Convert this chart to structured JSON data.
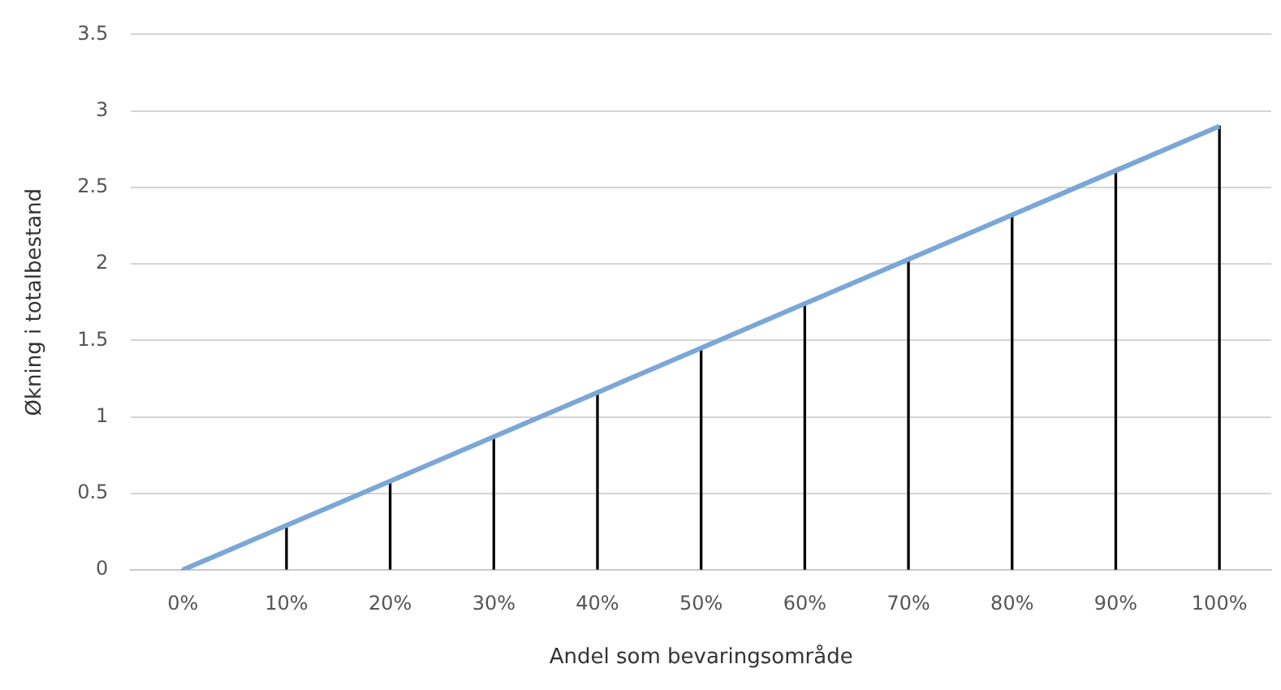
{
  "chart_data": {
    "type": "line",
    "xlabel": "Andel som bevaringsområde",
    "ylabel": "Økning i totalbestand",
    "categories": [
      "0%",
      "10%",
      "20%",
      "30%",
      "40%",
      "50%",
      "60%",
      "70%",
      "80%",
      "90%",
      "100%"
    ],
    "series": [
      {
        "type": "bar",
        "color": "#000000",
        "values": [
          0,
          0.29,
          0.58,
          0.87,
          1.16,
          1.45,
          1.74,
          2.03,
          2.32,
          2.61,
          2.9
        ]
      },
      {
        "color": "#7ba7d6",
        "values": [
          0,
          0.29,
          0.58,
          0.87,
          1.16,
          1.45,
          1.74,
          2.03,
          2.32,
          2.61,
          2.9
        ]
      }
    ],
    "ylim": [
      0,
      3.5
    ],
    "yticks": [
      0,
      0.5,
      1,
      1.5,
      2,
      2.5,
      3,
      3.5
    ],
    "grid": "y",
    "legend": false,
    "marker": "none",
    "line_style": "solid"
  }
}
